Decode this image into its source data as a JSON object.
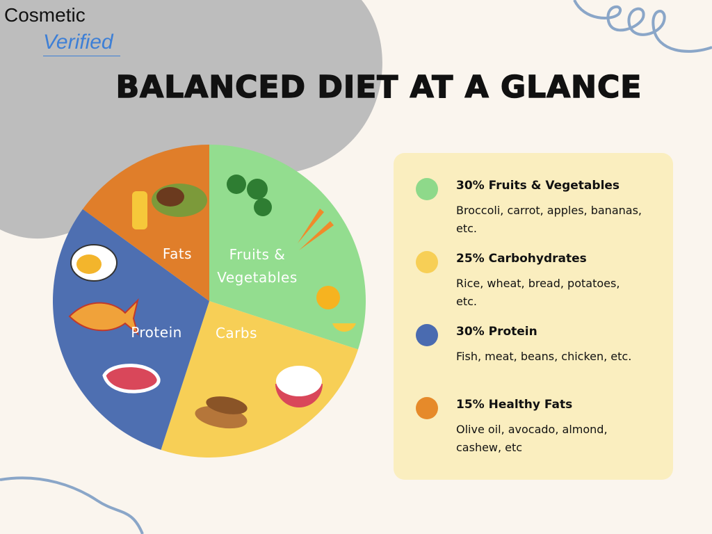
{
  "logo": {
    "line1": "Cosmetic",
    "line2": "Verified"
  },
  "chart_data": {
    "type": "pie",
    "title": "BALANCED DIET AT A GLANCE",
    "categories": [
      "Fruits & Vegetables",
      "Carbs",
      "Protein",
      "Fats"
    ],
    "values": [
      30,
      25,
      30,
      15
    ],
    "colors": [
      "#93dd8f",
      "#f7cf56",
      "#4e6fb1",
      "#e07e2a"
    ]
  },
  "legend": [
    {
      "title": "30% Fruits & Vegetables",
      "description": "Broccoli, carrot, apples, bananas, etc.",
      "color": "#8ed98a"
    },
    {
      "title": "25% Carbohydrates",
      "description": "Rice, wheat, bread, potatoes, etc.",
      "color": "#f7cf56"
    },
    {
      "title": "30% Protein",
      "description": "Fish, meat, beans, chicken, etc.",
      "color": "#4a6bb0"
    },
    {
      "title": "15% Healthy Fats",
      "description": "Olive oil, avocado, almond, cashew, etc",
      "color": "#e68a2a"
    }
  ]
}
